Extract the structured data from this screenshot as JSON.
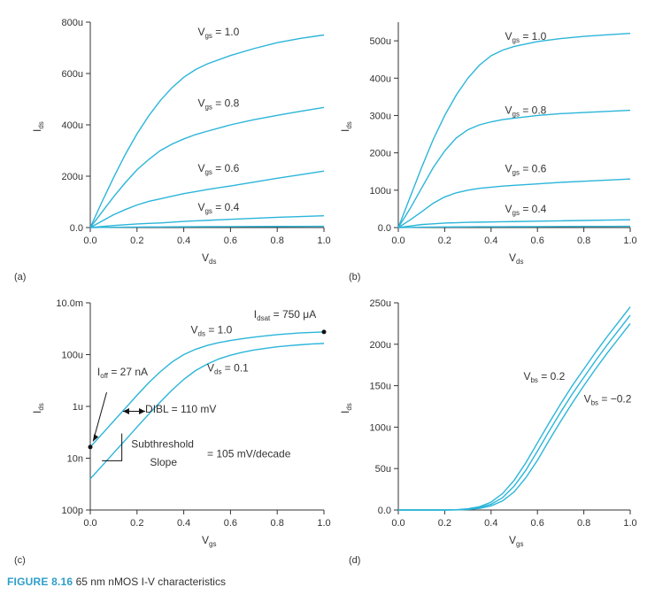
{
  "colors": {
    "curve": "#2bb5d9",
    "axis": "#333333",
    "caption_accent": "#2d9fc9"
  },
  "caption": {
    "number": "FIGURE 8.16",
    "text": "65 nm nMOS I-V characteristics"
  },
  "chart_data": [
    {
      "panel": "(a)",
      "type": "line",
      "xlabel": "V",
      "xlabel_sub": "ds",
      "ylabel": "I",
      "ylabel_sub": "ds",
      "xlim": [
        0,
        1.0
      ],
      "ylim": [
        0,
        800
      ],
      "x_ticks": [
        "0.0",
        "0.2",
        "0.4",
        "0.6",
        "0.8",
        "1.0"
      ],
      "y_ticks": [
        {
          "v": 0,
          "t": "0.0"
        },
        {
          "v": 200,
          "t": "200u"
        },
        {
          "v": 400,
          "t": "400u"
        },
        {
          "v": 600,
          "t": "600u"
        },
        {
          "v": 800,
          "t": "800u"
        }
      ],
      "x": [
        0,
        0.05,
        0.1,
        0.15,
        0.2,
        0.25,
        0.3,
        0.35,
        0.4,
        0.45,
        0.5,
        0.6,
        0.7,
        0.8,
        0.9,
        1.0
      ],
      "series": [
        {
          "values": [
            0,
            100,
            195,
            285,
            365,
            435,
            495,
            545,
            585,
            615,
            637,
            670,
            697,
            720,
            737,
            750
          ]
        },
        {
          "values": [
            0,
            60,
            120,
            175,
            225,
            265,
            300,
            325,
            345,
            362,
            375,
            400,
            420,
            437,
            453,
            468
          ]
        },
        {
          "values": [
            0,
            25,
            50,
            70,
            88,
            102,
            112,
            122,
            132,
            140,
            148,
            162,
            177,
            192,
            206,
            220
          ]
        },
        {
          "values": [
            0,
            4,
            8,
            11,
            14,
            16,
            18,
            21,
            24,
            26,
            28,
            32,
            36,
            40,
            43,
            46
          ]
        },
        {
          "values": [
            0,
            0.5,
            1,
            1.5,
            2,
            2.2,
            2.5,
            2.8,
            3,
            3.2,
            3.5,
            3.8,
            4,
            4.3,
            4.6,
            5
          ]
        }
      ],
      "annotations": [
        {
          "text": "V",
          "sub": "gs",
          "suffix": " = 1.0",
          "x": 0.46,
          "y": 748
        },
        {
          "text": "V",
          "sub": "gs",
          "suffix": " = 0.8",
          "x": 0.46,
          "y": 470
        },
        {
          "text": "V",
          "sub": "gs",
          "suffix": " = 0.6",
          "x": 0.46,
          "y": 217
        },
        {
          "text": "V",
          "sub": "gs",
          "suffix": " = 0.4",
          "x": 0.46,
          "y": 65
        }
      ]
    },
    {
      "panel": "(b)",
      "type": "line",
      "xlabel": "V",
      "xlabel_sub": "ds",
      "ylabel": "I",
      "ylabel_sub": "ds",
      "xlim": [
        0,
        1.0
      ],
      "ylim": [
        0,
        550
      ],
      "x_ticks": [
        "0.0",
        "0.2",
        "0.4",
        "0.6",
        "0.8",
        "1.0"
      ],
      "y_ticks": [
        {
          "v": 0,
          "t": "0.0"
        },
        {
          "v": 100,
          "t": "100u"
        },
        {
          "v": 200,
          "t": "200u"
        },
        {
          "v": 300,
          "t": "300u"
        },
        {
          "v": 400,
          "t": "400u"
        },
        {
          "v": 500,
          "t": "500u"
        }
      ],
      "x": [
        0,
        0.05,
        0.1,
        0.15,
        0.2,
        0.25,
        0.3,
        0.35,
        0.4,
        0.45,
        0.5,
        0.6,
        0.7,
        0.8,
        0.9,
        1.0
      ],
      "series": [
        {
          "values": [
            0,
            80,
            160,
            235,
            300,
            355,
            400,
            435,
            460,
            475,
            485,
            498,
            506,
            512,
            516,
            520
          ]
        },
        {
          "values": [
            0,
            50,
            105,
            160,
            205,
            240,
            262,
            275,
            283,
            289,
            293,
            300,
            305,
            308,
            311,
            314
          ]
        },
        {
          "values": [
            0,
            20,
            42,
            65,
            82,
            93,
            100,
            105,
            108,
            111,
            113,
            117,
            121,
            124,
            127,
            130
          ]
        },
        {
          "values": [
            0,
            4,
            8,
            10,
            12,
            13,
            14,
            14.5,
            15,
            15.5,
            16,
            17,
            18,
            19,
            20,
            21
          ]
        },
        {
          "values": [
            0,
            0.5,
            1,
            1.3,
            1.6,
            1.8,
            2,
            2.1,
            2.2,
            2.3,
            2.4,
            2.6,
            2.8,
            3,
            3.2,
            3.4
          ]
        }
      ],
      "annotations": [
        {
          "text": "V",
          "sub": "gs",
          "suffix": " = 1.0",
          "x": 0.46,
          "y": 503
        },
        {
          "text": "V",
          "sub": "gs",
          "suffix": " = 0.8",
          "x": 0.46,
          "y": 305
        },
        {
          "text": "V",
          "sub": "gs",
          "suffix": " = 0.6",
          "x": 0.46,
          "y": 148
        },
        {
          "text": "V",
          "sub": "gs",
          "suffix": " = 0.4",
          "x": 0.46,
          "y": 40
        }
      ]
    },
    {
      "panel": "(c)",
      "type": "line",
      "xlabel": "V",
      "xlabel_sub": "gs",
      "ylabel": "I",
      "ylabel_sub": "ds",
      "yscale": "log",
      "xlim": [
        0,
        1.0
      ],
      "ylim": [
        1e-10,
        0.01
      ],
      "x_ticks": [
        "0.0",
        "0.2",
        "0.4",
        "0.6",
        "0.8",
        "1.0"
      ],
      "y_ticks": [
        {
          "v": 1e-10,
          "t": "100p"
        },
        {
          "v": 1e-08,
          "t": "10n"
        },
        {
          "v": 1e-06,
          "t": "1u"
        },
        {
          "v": 0.0001,
          "t": "100u"
        },
        {
          "v": 0.01,
          "t": "10.0m"
        }
      ],
      "x": [
        0,
        0.05,
        0.1,
        0.15,
        0.2,
        0.25,
        0.3,
        0.35,
        0.4,
        0.45,
        0.5,
        0.55,
        0.6,
        0.65,
        0.7,
        0.75,
        0.8,
        0.85,
        0.9,
        0.95,
        1.0
      ],
      "series": [
        {
          "values": [
            2.7e-08,
            8.5e-08,
            2.7e-07,
            8.5e-07,
            2.7e-06,
            8.2e-06,
            2.2e-05,
            5.2e-05,
            0.0001,
            0.00016,
            0.000225,
            0.00029,
            0.00035,
            0.00041,
            0.00047,
            0.00053,
            0.00059,
            0.00064,
            0.00069,
            0.00072,
            0.00075
          ]
        },
        {
          "values": [
            1.6e-09,
            5e-09,
            1.6e-08,
            5e-08,
            1.6e-07,
            5e-07,
            1.5e-06,
            4.3e-06,
            1.1e-05,
            2.4e-05,
            4.3e-05,
            6.8e-05,
            9.5e-05,
            0.000122,
            0.00015,
            0.000175,
            0.0002,
            0.00022,
            0.00024,
            0.000258,
            0.00027
          ]
        }
      ],
      "markers": [
        {
          "x": 0.0,
          "y": 2.7e-08
        },
        {
          "x": 1.0,
          "y": 0.00075
        }
      ],
      "annotations": [
        {
          "text": "I",
          "sub": "dsat",
          "suffix": " = 750 μA",
          "x": 0.7,
          "y": 0.0026
        },
        {
          "text": "V",
          "sub": "ds",
          "suffix": " = 1.0",
          "x": 0.43,
          "y": 0.00065
        },
        {
          "text": "V",
          "sub": "ds",
          "suffix": " = 0.1",
          "x": 0.5,
          "y": 2.2e-05
        },
        {
          "text": "I",
          "sub": "off",
          "suffix": " = 27 nA",
          "x": 0.03,
          "y": 1.6e-05
        },
        {
          "text": "DIBL = 110 mV",
          "x": 0.235,
          "y": 5.8e-07
        },
        {
          "text": "Subthreshold",
          "x": 0.175,
          "y": 2.6e-08
        },
        {
          "text": "Slope",
          "x": 0.255,
          "y": 5.2e-09
        },
        {
          "text": "= 105 mV/decade",
          "x": 0.5,
          "y": 1.1e-08
        }
      ]
    },
    {
      "panel": "(d)",
      "type": "line",
      "xlabel": "V",
      "xlabel_sub": "gs",
      "ylabel": "I",
      "ylabel_sub": "ds",
      "xlim": [
        0,
        1.0
      ],
      "ylim": [
        0,
        250
      ],
      "x_ticks": [
        "0.0",
        "0.2",
        "0.4",
        "0.6",
        "0.8",
        "1.0"
      ],
      "y_ticks": [
        {
          "v": 0,
          "t": "0.0"
        },
        {
          "v": 50,
          "t": "50u"
        },
        {
          "v": 100,
          "t": "100u"
        },
        {
          "v": 150,
          "t": "150u"
        },
        {
          "v": 200,
          "t": "200u"
        },
        {
          "v": 250,
          "t": "250u"
        }
      ],
      "x": [
        0,
        0.1,
        0.2,
        0.25,
        0.3,
        0.35,
        0.4,
        0.45,
        0.5,
        0.55,
        0.6,
        0.65,
        0.7,
        0.75,
        0.8,
        0.85,
        0.9,
        0.95,
        1.0
      ],
      "series": [
        {
          "values": [
            0,
            0,
            0,
            0.3,
            1.5,
            4,
            9.5,
            20,
            36,
            57,
            81,
            105,
            128,
            150,
            170,
            190,
            209,
            227,
            245
          ]
        },
        {
          "values": [
            0,
            0,
            0,
            0.2,
            1,
            3,
            7,
            15,
            29,
            48,
            71,
            95,
            118,
            140,
            160,
            180,
            199,
            217,
            235
          ]
        },
        {
          "values": [
            0,
            0,
            0,
            0.1,
            0.6,
            2,
            5,
            11,
            22,
            39,
            60,
            84,
            107,
            129,
            150,
            170,
            189,
            207,
            225
          ]
        }
      ],
      "annotations": [
        {
          "text": "V",
          "sub": "bs",
          "suffix": " = 0.2",
          "x": 0.54,
          "y": 157
        },
        {
          "text": "V",
          "sub": "bs",
          "suffix": " = −0.2",
          "x": 0.8,
          "y": 130
        }
      ]
    }
  ]
}
